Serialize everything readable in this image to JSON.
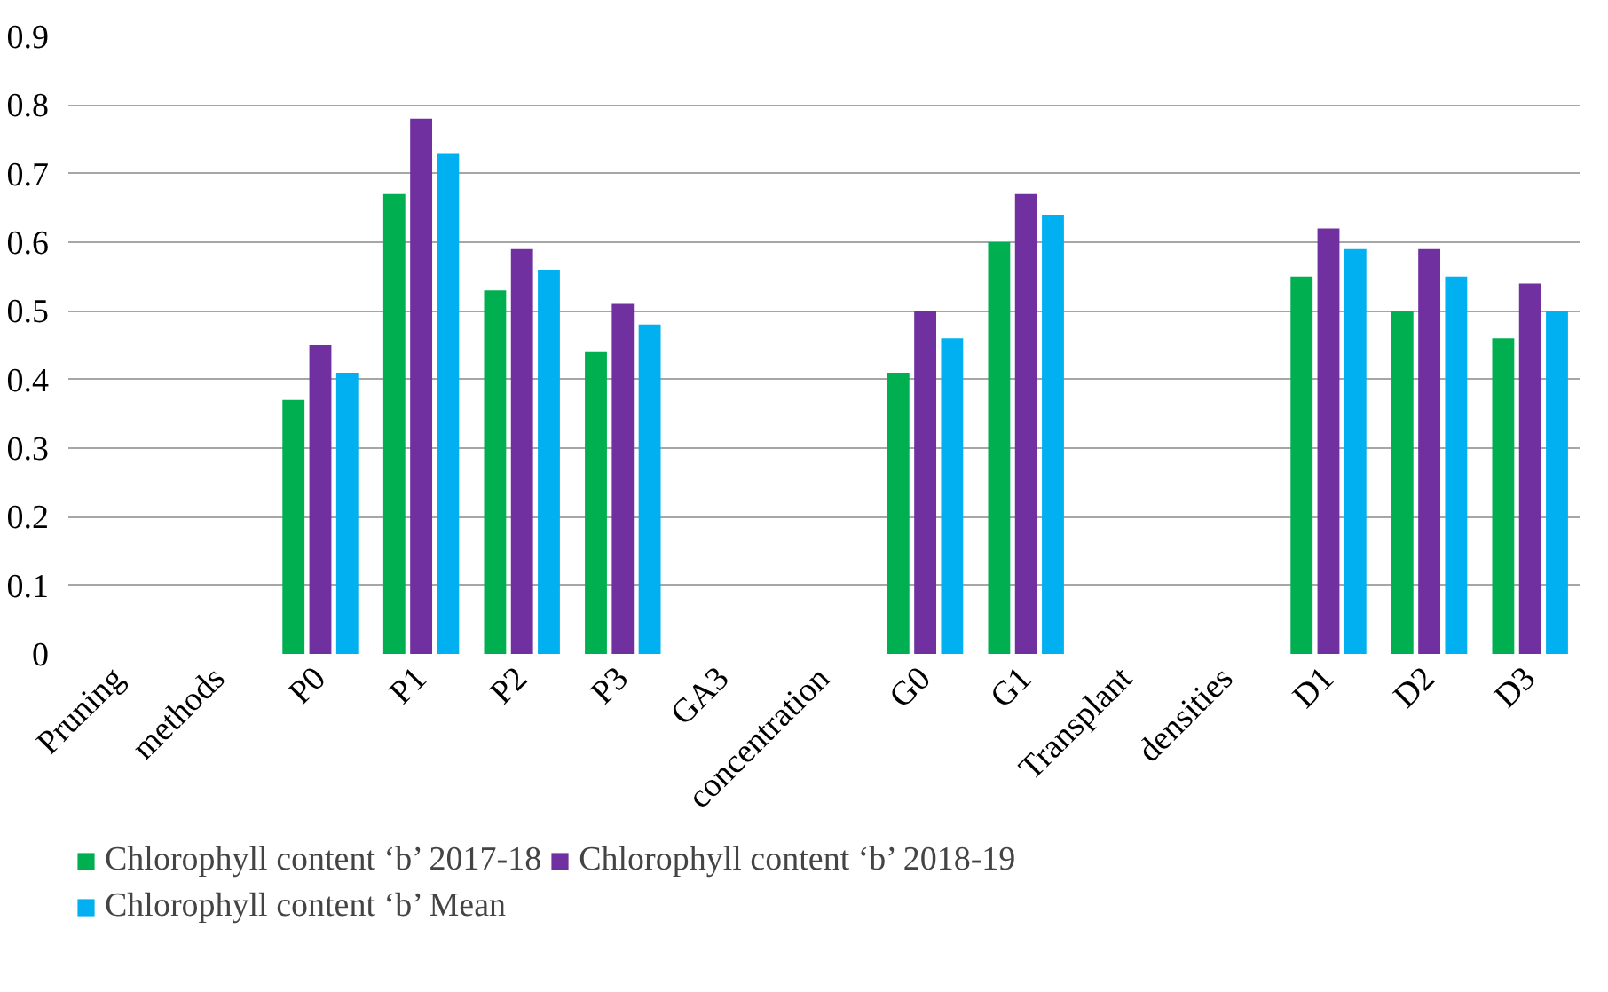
{
  "chart_data": {
    "type": "bar",
    "categories": [
      "Pruning",
      "methods",
      "P0",
      "P1",
      "P2",
      "P3",
      "GA3",
      "concentration",
      "G0",
      "G1",
      "Transplant",
      "densities",
      "D1",
      "D2",
      "D3"
    ],
    "series": [
      {
        "name": "Chlorophyll content ‘b’ 2017-18",
        "color": "#00b050",
        "values": [
          null,
          null,
          0.37,
          0.67,
          0.53,
          0.44,
          null,
          null,
          0.41,
          0.6,
          null,
          null,
          0.55,
          0.5,
          0.46
        ]
      },
      {
        "name": "Chlorophyll content ‘b’ 2018-19",
        "color": "#7030a0",
        "values": [
          null,
          null,
          0.45,
          0.78,
          0.59,
          0.51,
          null,
          null,
          0.5,
          0.67,
          null,
          null,
          0.62,
          0.59,
          0.54
        ]
      },
      {
        "name": "Chlorophyll content ‘b’ Mean",
        "color": "#00b0f0",
        "values": [
          null,
          null,
          0.41,
          0.73,
          0.56,
          0.48,
          null,
          null,
          0.46,
          0.64,
          null,
          null,
          0.59,
          0.55,
          0.5
        ]
      }
    ],
    "ylim": [
      0,
      0.9
    ],
    "yticks": [
      0,
      0.1,
      0.2,
      0.3,
      0.4,
      0.5,
      0.6,
      0.7,
      0.8,
      0.9
    ],
    "grid": "y",
    "legend": "bottom"
  }
}
